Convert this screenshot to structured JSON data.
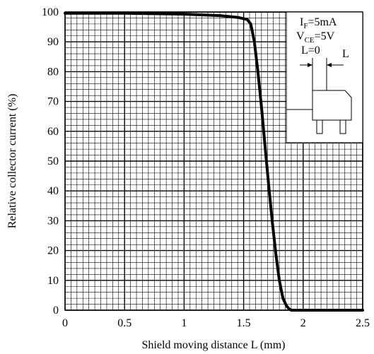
{
  "chart_data": {
    "type": "line",
    "title": "",
    "xlabel": "Shield moving distance L (mm)",
    "ylabel": "Relative collector current (%)",
    "xlim": [
      0,
      2.5
    ],
    "ylim": [
      0,
      100
    ],
    "x_ticks": [
      "0",
      "0.5",
      "1",
      "1.5",
      "2",
      "2.5"
    ],
    "y_ticks": [
      "0",
      "10",
      "20",
      "30",
      "40",
      "50",
      "60",
      "70",
      "80",
      "90",
      "100"
    ],
    "x_tick_values": [
      0,
      0.5,
      1,
      1.5,
      2,
      2.5
    ],
    "y_tick_values": [
      0,
      10,
      20,
      30,
      40,
      50,
      60,
      70,
      80,
      90,
      100
    ],
    "grid": true,
    "grid_minor_x_step": 0.05,
    "grid_minor_y_step": 2,
    "series": [
      {
        "x": [
          0,
          0.5,
          1.0,
          1.3,
          1.45,
          1.53,
          1.56,
          1.59,
          1.62,
          1.65,
          1.68,
          1.71,
          1.74,
          1.77,
          1.8,
          1.83,
          1.86,
          1.88,
          1.9,
          1.95,
          2.0,
          2.2,
          2.5
        ],
        "y": [
          99.6,
          99.6,
          99.3,
          98.8,
          98.2,
          97.5,
          96,
          90,
          80,
          68,
          55,
          42,
          30,
          19,
          10,
          4,
          1.5,
          0.5,
          0,
          0,
          0,
          0,
          0
        ]
      }
    ],
    "annotation": {
      "if_main": "I",
      "if_sub": "F",
      "if_value": "=5mA",
      "vce_main": "V",
      "vce_sub": "CE",
      "vce_value": "=5V",
      "l_zero": "L=0",
      "l_label": "L"
    }
  },
  "colors": {
    "line": "#000000",
    "grid": "#000000",
    "background": "#ffffff"
  }
}
